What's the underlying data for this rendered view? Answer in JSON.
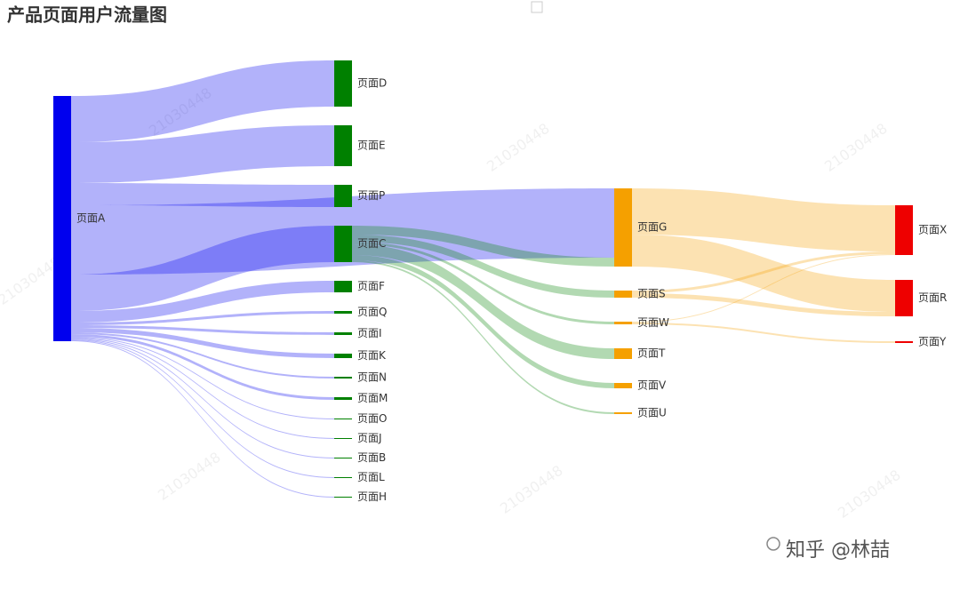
{
  "chart_data": {
    "type": "sankey",
    "title": "产品页面用户流量图",
    "watermark": "21030448",
    "credit": "知乎 @林喆",
    "link_opacity": 0.3,
    "nodes": [
      {
        "name": "页面A",
        "color": "#0000ee"
      },
      {
        "name": "页面D",
        "color": "#008000"
      },
      {
        "name": "页面E",
        "color": "#008000"
      },
      {
        "name": "页面P",
        "color": "#008000"
      },
      {
        "name": "页面C",
        "color": "#008000"
      },
      {
        "name": "页面F",
        "color": "#008000"
      },
      {
        "name": "页面Q",
        "color": "#008000"
      },
      {
        "name": "页面I",
        "color": "#008000"
      },
      {
        "name": "页面K",
        "color": "#008000"
      },
      {
        "name": "页面N",
        "color": "#008000"
      },
      {
        "name": "页面M",
        "color": "#008000"
      },
      {
        "name": "页面O",
        "color": "#008000"
      },
      {
        "name": "页面J",
        "color": "#008000"
      },
      {
        "name": "页面B",
        "color": "#008000"
      },
      {
        "name": "页面L",
        "color": "#008000"
      },
      {
        "name": "页面H",
        "color": "#008000"
      },
      {
        "name": "页面G",
        "color": "#f5a000"
      },
      {
        "name": "页面S",
        "color": "#f5a000"
      },
      {
        "name": "页面W",
        "color": "#f5a000"
      },
      {
        "name": "页面T",
        "color": "#f5a000"
      },
      {
        "name": "页面V",
        "color": "#f5a000"
      },
      {
        "name": "页面U",
        "color": "#f5a000"
      },
      {
        "name": "页面X",
        "color": "#ee0000"
      },
      {
        "name": "页面R",
        "color": "#ee0000"
      },
      {
        "name": "页面Y",
        "color": "#ee0000"
      }
    ],
    "links": [
      {
        "source": "页面A",
        "target": "页面D",
        "value": 52
      },
      {
        "source": "页面A",
        "target": "页面E",
        "value": 46
      },
      {
        "source": "页面A",
        "target": "页面G",
        "value": 78
      },
      {
        "source": "页面A",
        "target": "页面P",
        "value": 25
      },
      {
        "source": "页面A",
        "target": "页面C",
        "value": 41
      },
      {
        "source": "页面A",
        "target": "页面F",
        "value": 13
      },
      {
        "source": "页面A",
        "target": "页面Q",
        "value": 3
      },
      {
        "source": "页面A",
        "target": "页面I",
        "value": 3
      },
      {
        "source": "页面A",
        "target": "页面K",
        "value": 5
      },
      {
        "source": "页面A",
        "target": "页面N",
        "value": 2
      },
      {
        "source": "页面A",
        "target": "页面M",
        "value": 3
      },
      {
        "source": "页面A",
        "target": "页面O",
        "value": 1
      },
      {
        "source": "页面A",
        "target": "页面J",
        "value": 1
      },
      {
        "source": "页面A",
        "target": "页面B",
        "value": 1
      },
      {
        "source": "页面A",
        "target": "页面L",
        "value": 1
      },
      {
        "source": "页面A",
        "target": "页面H",
        "value": 1
      },
      {
        "source": "页面C",
        "target": "页面G",
        "value": 10
      },
      {
        "source": "页面C",
        "target": "页面S",
        "value": 8
      },
      {
        "source": "页面C",
        "target": "页面W",
        "value": 3
      },
      {
        "source": "页面C",
        "target": "页面T",
        "value": 12
      },
      {
        "source": "页面C",
        "target": "页面V",
        "value": 6
      },
      {
        "source": "页面C",
        "target": "页面U",
        "value": 2
      },
      {
        "source": "页面G",
        "target": "页面X",
        "value": 52
      },
      {
        "source": "页面G",
        "target": "页面R",
        "value": 36
      },
      {
        "source": "页面S",
        "target": "页面X",
        "value": 3
      },
      {
        "source": "页面S",
        "target": "页面R",
        "value": 5
      },
      {
        "source": "页面W",
        "target": "页面X",
        "value": 1
      },
      {
        "source": "页面W",
        "target": "页面Y",
        "value": 2
      }
    ]
  }
}
